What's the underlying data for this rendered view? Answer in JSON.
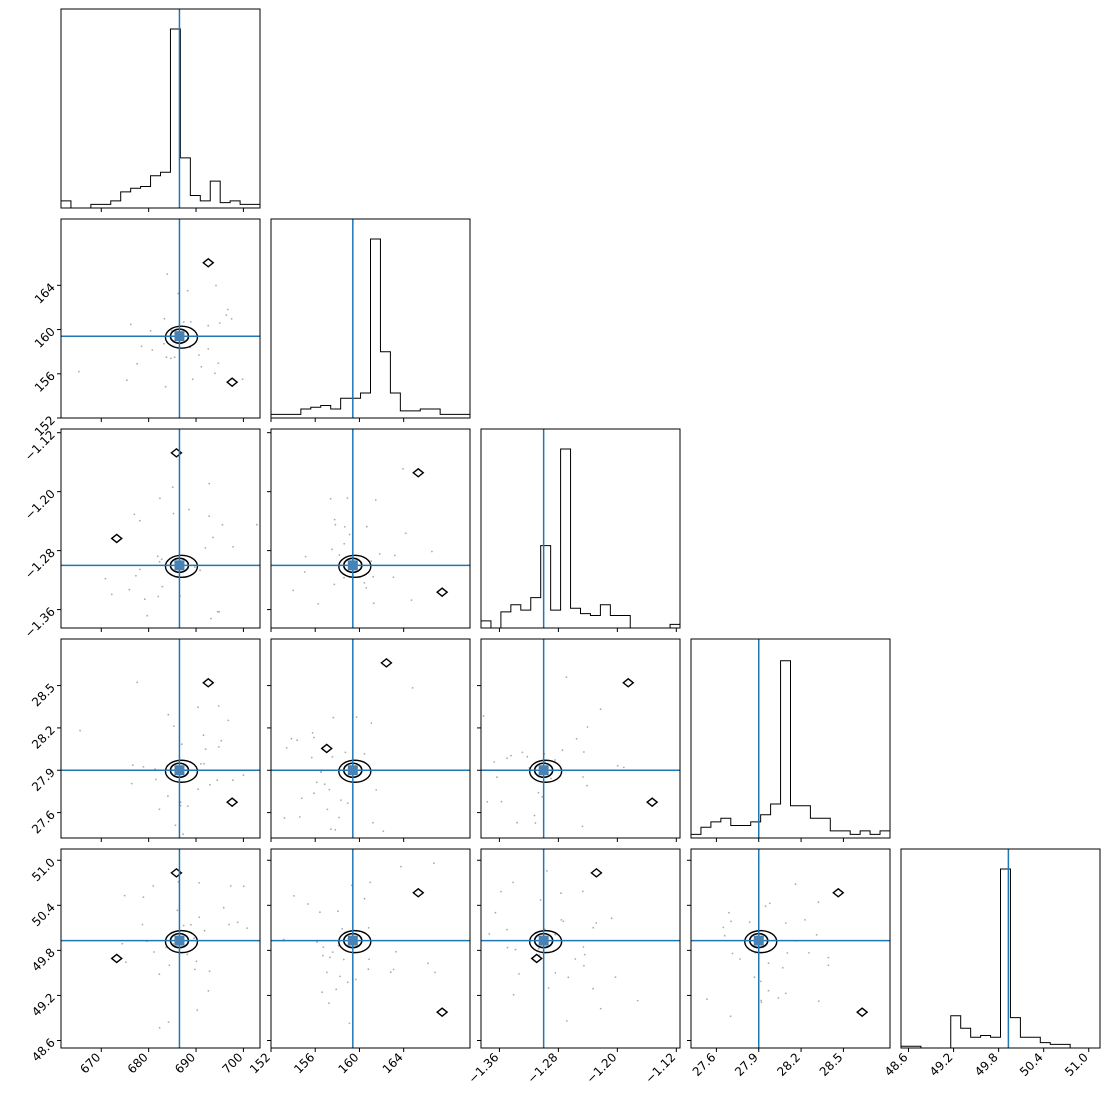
{
  "chart_data": {
    "type": "scatter",
    "subtype": "corner-plot",
    "title": "",
    "truth_color": "#1f77b4",
    "contour_color": "#000000",
    "point_color": "#aaaaaa",
    "variables": [
      {
        "range": [
          661.5,
          703.5
        ],
        "ticks": [
          670,
          680,
          690,
          700
        ],
        "tick_labels": [
          "670",
          "680",
          "690",
          "700"
        ],
        "truth": 686.5
      },
      {
        "range": [
          152,
          170
        ],
        "ticks": [
          152,
          156,
          160,
          164
        ],
        "tick_labels": [
          "152",
          "156",
          "160",
          "164"
        ],
        "truth": 159.4
      },
      {
        "range": [
          -1.385,
          -1.115
        ],
        "ticks": [
          -1.36,
          -1.28,
          -1.2,
          -1.12
        ],
        "tick_labels": [
          "−1.36",
          "−1.28",
          "−1.20",
          "−1.12"
        ],
        "truth": -1.3
      },
      {
        "range": [
          27.42,
          28.83
        ],
        "ticks": [
          27.6,
          27.9,
          28.2,
          28.5
        ],
        "tick_labels": [
          "27.6",
          "27.9",
          "28.2",
          "28.5"
        ],
        "truth": 27.9
      },
      {
        "range": [
          48.5,
          51.15
        ],
        "ticks": [
          48.6,
          49.2,
          49.8,
          50.4,
          51.0
        ],
        "tick_labels": [
          "48.6",
          "49.2",
          "49.8",
          "50.4",
          "51.0"
        ],
        "truth": 49.93
      }
    ],
    "histograms": [
      {
        "heights": [
          0.04,
          0,
          0,
          0.02,
          0.02,
          0.04,
          0.09,
          0.11,
          0.12,
          0.18,
          0.2,
          1.0,
          0.28,
          0.07,
          0.04,
          0.15,
          0.03,
          0.04,
          0.02,
          0.02
        ]
      },
      {
        "heights": [
          0.02,
          0.02,
          0.02,
          0.05,
          0.06,
          0.07,
          0.05,
          0.11,
          0.11,
          0.14,
          1.0,
          0.37,
          0.14,
          0.04,
          0.04,
          0.05,
          0.05,
          0.02,
          0.02,
          0.02
        ]
      },
      {
        "heights": [
          0.04,
          0,
          0.09,
          0.13,
          0.1,
          0.17,
          0.46,
          0.1,
          1.0,
          0.11,
          0.08,
          0.07,
          0.13,
          0.07,
          0.07,
          0.0,
          0.0,
          0.0,
          0.0,
          0.02
        ]
      },
      {
        "heights": [
          0.02,
          0.06,
          0.09,
          0.11,
          0.07,
          0.07,
          0.09,
          0.13,
          0.19,
          0.99,
          0.18,
          0.18,
          0.11,
          0.11,
          0.04,
          0.04,
          0.02,
          0.04,
          0.02,
          0.04
        ]
      },
      {
        "heights": [
          0.01,
          0.01,
          0.0,
          0.0,
          0.0,
          0.18,
          0.11,
          0.06,
          0.07,
          0.06,
          1.0,
          0.17,
          0.06,
          0.06,
          0.03,
          0.02,
          0.02,
          0.0,
          0.0,
          0.0
        ]
      }
    ],
    "pair_peaks": [
      {
        "row": 1,
        "col": 0,
        "x": 686.5,
        "y": 159.4
      },
      {
        "row": 2,
        "col": 0,
        "x": 686.5,
        "y": -1.3
      },
      {
        "row": 2,
        "col": 1,
        "x": 159.4,
        "y": -1.3
      },
      {
        "row": 3,
        "col": 0,
        "x": 686.5,
        "y": 27.9
      },
      {
        "row": 3,
        "col": 1,
        "x": 159.4,
        "y": 27.9
      },
      {
        "row": 3,
        "col": 2,
        "x": -1.3,
        "y": 27.9
      },
      {
        "row": 4,
        "col": 0,
        "x": 686.5,
        "y": 49.93
      },
      {
        "row": 4,
        "col": 1,
        "x": 159.4,
        "y": 49.93
      },
      {
        "row": 4,
        "col": 2,
        "x": -1.3,
        "y": 49.93
      },
      {
        "row": 4,
        "col": 3,
        "x": 27.9,
        "y": 49.93
      }
    ]
  }
}
